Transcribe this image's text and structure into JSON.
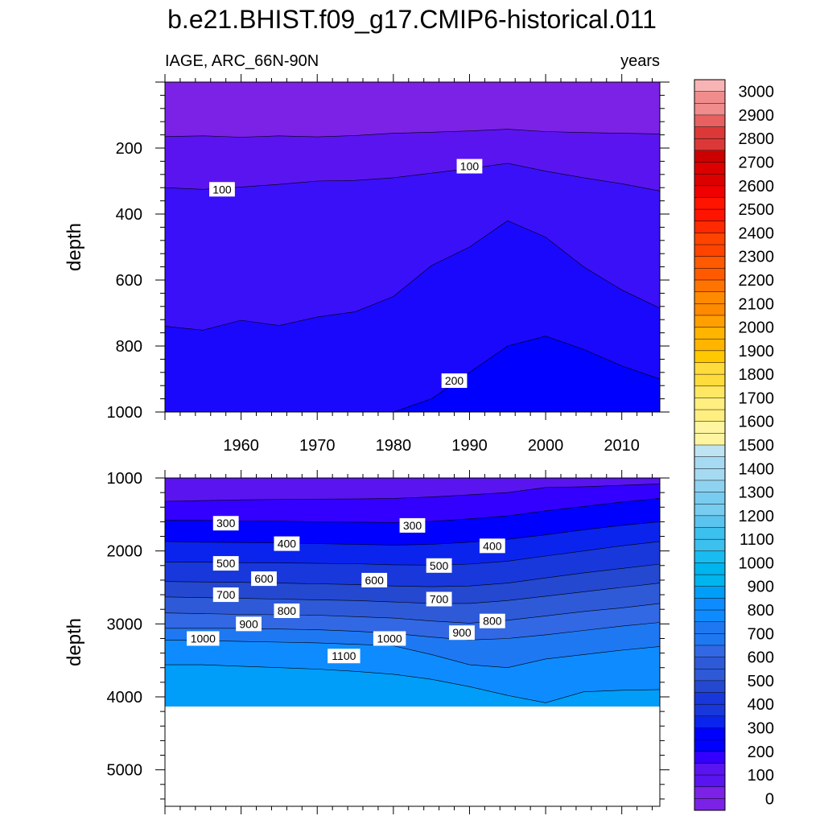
{
  "figure": {
    "title": "b.e21.BHIST.f09_g17.CMIP6-historical.011",
    "variable_label": "IAGE, ARC_66N-90N",
    "units_label": "years"
  },
  "colorbar": {
    "levels": [
      0,
      100,
      200,
      300,
      400,
      500,
      600,
      700,
      800,
      900,
      1000,
      1100,
      1200,
      1300,
      1400,
      1500,
      1600,
      1700,
      1800,
      1900,
      2000,
      2100,
      2200,
      2300,
      2400,
      2500,
      2600,
      2700,
      2800,
      2900,
      3000
    ],
    "level_labels": [
      "0",
      "100",
      "200",
      "300",
      "400",
      "500",
      "600",
      "700",
      "800",
      "900",
      "1000",
      "1100",
      "1200",
      "1300",
      "1400",
      "1500",
      "1600",
      "1700",
      "1800",
      "1900",
      "2000",
      "2100",
      "2200",
      "2300",
      "2400",
      "2500",
      "2600",
      "2700",
      "2800",
      "2900",
      "3000"
    ],
    "colors": [
      "#7b22e6",
      "#5a14f0",
      "#3300ff",
      "#0000ff",
      "#0a24ee",
      "#1838dc",
      "#2448d0",
      "#2e5ad8",
      "#3268e4",
      "#1e78f2",
      "#0e8cff",
      "#009ef8",
      "#00b4ee",
      "#18bcf0",
      "#3cc0ee",
      "#5ac4ee",
      "#78ccf0",
      "#8ed2f0",
      "#a6daf2",
      "#bee4f4",
      "#fff5a0",
      "#ffef80",
      "#ffe764",
      "#ffdc3c",
      "#ffc800",
      "#ffb400",
      "#ffa000",
      "#ff8a00",
      "#ff7400",
      "#ff5a00",
      "#ff4400",
      "#ff2a00",
      "#ff1400",
      "#f00000",
      "#dc0000",
      "#cc0000",
      "#dc3838",
      "#e86060",
      "#f08c8c",
      "#f8b4b4"
    ]
  },
  "chart_data": [
    {
      "type": "contour",
      "panel": "top",
      "x": [
        1950,
        1955,
        1960,
        1965,
        1970,
        1975,
        1980,
        1985,
        1990,
        1995,
        2000,
        2005,
        2010,
        2015
      ],
      "x_ticks": [
        1960,
        1970,
        1980,
        1990,
        2000,
        2010
      ],
      "x_tick_labels": [
        "1960",
        "1970",
        "1980",
        "1990",
        "2000",
        "2010"
      ],
      "xlim": [
        1950,
        2015
      ],
      "ylim": [
        1000,
        0
      ],
      "y_ticks": [
        200,
        400,
        600,
        800,
        1000
      ],
      "y_tick_labels": [
        "200",
        "400",
        "600",
        "800",
        "1000"
      ],
      "ylabel": "depth",
      "contours": [
        {
          "level": 50,
          "depth": [
            165,
            163,
            167,
            163,
            166,
            162,
            155,
            152,
            148,
            143,
            150,
            153,
            155,
            157
          ]
        },
        {
          "level": 100,
          "depth": [
            320,
            325,
            318,
            310,
            300,
            298,
            290,
            276,
            262,
            246,
            270,
            290,
            308,
            330
          ]
        },
        {
          "level": 150,
          "depth": [
            740,
            752,
            722,
            738,
            712,
            696,
            650,
            556,
            500,
            420,
            470,
            560,
            630,
            685
          ]
        },
        {
          "level": 200,
          "depth": [
            1000,
            1000,
            1000,
            1000,
            1000,
            1000,
            1000,
            960,
            880,
            800,
            770,
            810,
            860,
            900
          ]
        }
      ],
      "contour_labels": [
        {
          "text": "100",
          "x": 1957.5,
          "depth": 325
        },
        {
          "text": "100",
          "x": 1990,
          "depth": 255
        },
        {
          "text": "200",
          "x": 1988,
          "depth": 905
        }
      ]
    },
    {
      "type": "contour",
      "panel": "bottom",
      "x": [
        1950,
        1955,
        1960,
        1965,
        1970,
        1975,
        1980,
        1985,
        1990,
        1995,
        2000,
        2005,
        2010,
        2015
      ],
      "xlim": [
        1950,
        2015
      ],
      "ylim": [
        5500,
        1000
      ],
      "y_ticks": [
        1000,
        2000,
        3000,
        4000,
        5000
      ],
      "y_tick_labels": [
        "1000",
        "2000",
        "3000",
        "4000",
        "5000"
      ],
      "ylabel": "depth",
      "data_bottom_depth": 4130,
      "contours": [
        {
          "level": 200,
          "depth": [
            1320,
            1310,
            1300,
            1295,
            1290,
            1288,
            1280,
            1260,
            1230,
            1200,
            1130,
            1120,
            1100,
            1080
          ]
        },
        {
          "level": 300,
          "depth": [
            1580,
            1580,
            1590,
            1592,
            1600,
            1605,
            1610,
            1595,
            1560,
            1520,
            1450,
            1390,
            1330,
            1280
          ]
        },
        {
          "level": 400,
          "depth": [
            1870,
            1880,
            1885,
            1890,
            1900,
            1910,
            1920,
            1910,
            1880,
            1840,
            1780,
            1710,
            1650,
            1600
          ]
        },
        {
          "level": 500,
          "depth": [
            2150,
            2155,
            2160,
            2165,
            2170,
            2175,
            2190,
            2195,
            2180,
            2140,
            2070,
            2000,
            1930,
            1870
          ]
        },
        {
          "level": 600,
          "depth": [
            2420,
            2425,
            2430,
            2440,
            2450,
            2460,
            2480,
            2490,
            2480,
            2440,
            2370,
            2300,
            2240,
            2180
          ]
        },
        {
          "level": 700,
          "depth": [
            2630,
            2640,
            2650,
            2660,
            2670,
            2680,
            2700,
            2720,
            2720,
            2680,
            2620,
            2560,
            2500,
            2440
          ]
        },
        {
          "level": 800,
          "depth": [
            2850,
            2860,
            2870,
            2875,
            2880,
            2900,
            2920,
            2960,
            2990,
            2950,
            2890,
            2830,
            2780,
            2720
          ]
        },
        {
          "level": 900,
          "depth": [
            3060,
            3060,
            3060,
            3070,
            3080,
            3100,
            3130,
            3180,
            3220,
            3200,
            3150,
            3090,
            3030,
            2980
          ]
        },
        {
          "level": 1000,
          "depth": [
            3220,
            3230,
            3240,
            3250,
            3260,
            3280,
            3300,
            3420,
            3560,
            3600,
            3480,
            3420,
            3360,
            3310
          ]
        },
        {
          "level": 1100,
          "depth": [
            3560,
            3560,
            3580,
            3600,
            3620,
            3650,
            3690,
            3760,
            3860,
            3980,
            4080,
            3930,
            3910,
            3900
          ]
        }
      ],
      "contour_labels": [
        {
          "text": "300",
          "x": 1958,
          "depth": 1620
        },
        {
          "text": "300",
          "x": 1982.5,
          "depth": 1650
        },
        {
          "text": "400",
          "x": 1966,
          "depth": 1900
        },
        {
          "text": "400",
          "x": 1993,
          "depth": 1930
        },
        {
          "text": "500",
          "x": 1958,
          "depth": 2170
        },
        {
          "text": "500",
          "x": 1986,
          "depth": 2200
        },
        {
          "text": "600",
          "x": 1963,
          "depth": 2380
        },
        {
          "text": "600",
          "x": 1977.5,
          "depth": 2400
        },
        {
          "text": "700",
          "x": 1958,
          "depth": 2600
        },
        {
          "text": "700",
          "x": 1986,
          "depth": 2660
        },
        {
          "text": "800",
          "x": 1966,
          "depth": 2820
        },
        {
          "text": "800",
          "x": 1993,
          "depth": 2960
        },
        {
          "text": "900",
          "x": 1961,
          "depth": 3000
        },
        {
          "text": "900",
          "x": 1989,
          "depth": 3120
        },
        {
          "text": "1000",
          "x": 1955,
          "depth": 3200
        },
        {
          "text": "1000",
          "x": 1979.5,
          "depth": 3200
        },
        {
          "text": "1100",
          "x": 1973.5,
          "depth": 3440
        }
      ]
    }
  ]
}
